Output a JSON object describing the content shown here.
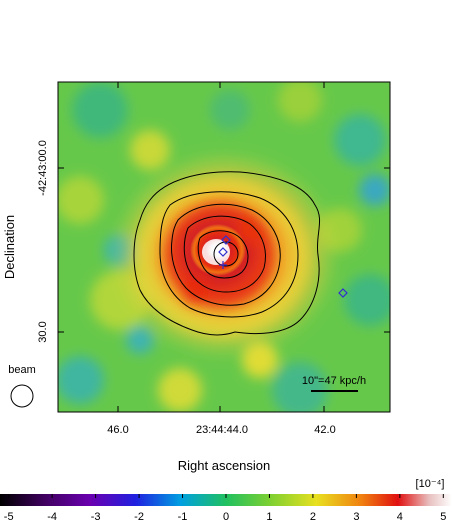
{
  "axes": {
    "xlabel": "Right ascension",
    "ylabel": "Declination",
    "xticks": [
      "46.0",
      "23:44:44.0",
      "42.0"
    ],
    "yticks": [
      "-42:43:00.0",
      "30.0"
    ]
  },
  "beam_label": "beam",
  "scale_bar_label": "10\"=47 kpc/h",
  "colorbar": {
    "unit": "[10⁻⁴]",
    "ticks": [
      "-5",
      "-4",
      "-3",
      "-2",
      "-1",
      "0",
      "1",
      "2",
      "3",
      "4",
      "5"
    ],
    "range": [
      -5.2,
      5.2
    ]
  },
  "colors": {
    "background_green": "#66c84a",
    "contour": "#000000",
    "marker": "#3030d0"
  },
  "markers": [
    {
      "shape": "diamond"
    },
    {
      "shape": "diamond"
    },
    {
      "shape": "diamond"
    },
    {
      "shape": "cross"
    }
  ]
}
